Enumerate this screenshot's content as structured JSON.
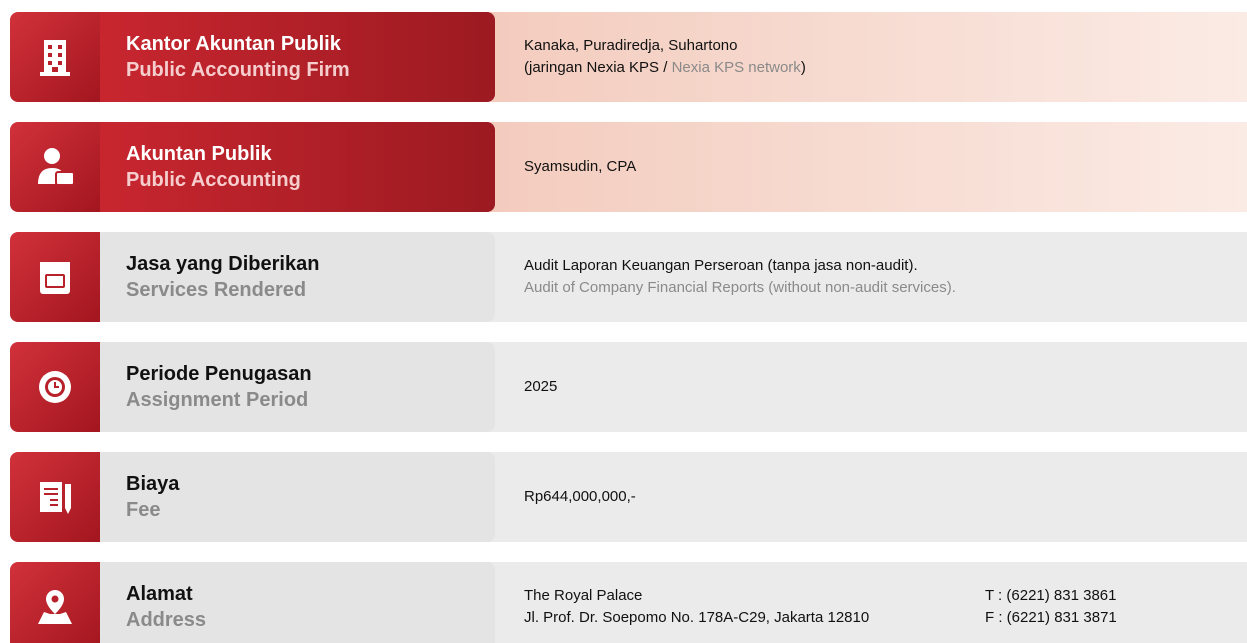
{
  "rows": [
    {
      "label_id": "Kantor Akuntan Publik",
      "label_en": "Public Accounting Firm",
      "value_lines": [
        [
          "Kanaka, Puradiredja, Suhartono"
        ],
        [
          "(jaringan Nexia KPS /",
          "Nexia KPS network",
          ")"
        ]
      ]
    },
    {
      "label_id": "Akuntan Publik",
      "label_en": "Public Accounting",
      "value_lines": [
        [
          "Syamsudin, CPA"
        ]
      ]
    },
    {
      "label_id": "Jasa yang Diberikan",
      "label_en": "Services Rendered",
      "value_lines": [
        [
          "Audit Laporan Keuangan Perseroan (tanpa jasa non-audit)."
        ],
        [
          "Audit of Company Financial Reports (without non-audit services)."
        ]
      ]
    },
    {
      "label_id": "Periode Penugasan",
      "label_en": "Assignment Period",
      "value_lines": [
        [
          "2025"
        ]
      ]
    },
    {
      "label_id": "Biaya",
      "label_en": "Fee",
      "value_lines": [
        [
          "Rp644,000,000,-"
        ]
      ]
    },
    {
      "label_id": "Alamat",
      "label_en": "Address",
      "value_lines": [
        [
          "The Royal Palace"
        ],
        [
          "Jl. Prof. Dr. Soepomo No. 178A-C29, Jakarta 12810"
        ]
      ],
      "contact_lines": [
        "T : (6221) 831 3861",
        "F : (6221) 831 3871"
      ]
    }
  ]
}
